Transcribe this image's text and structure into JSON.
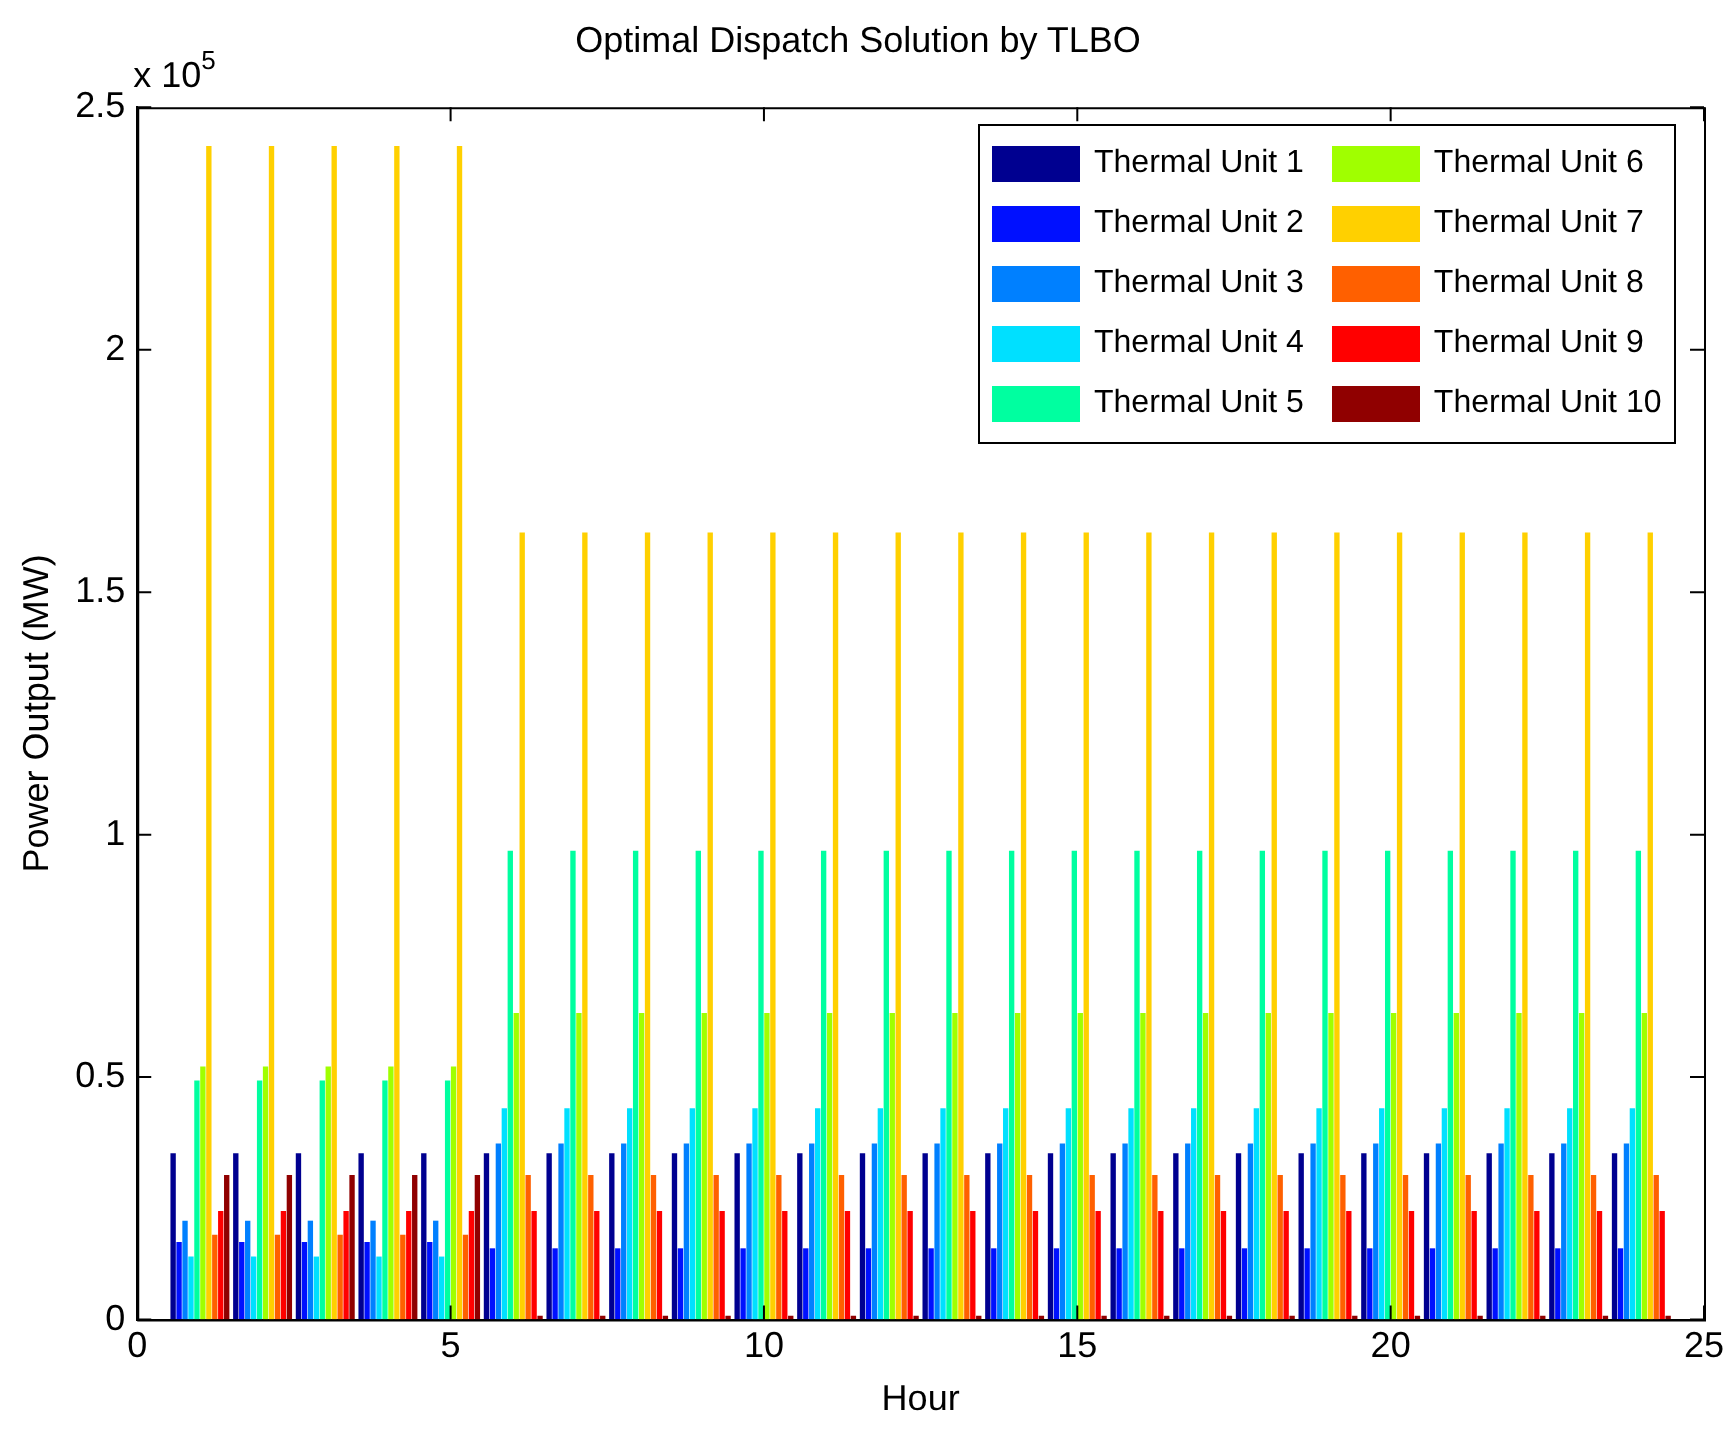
{
  "chart_data": {
    "type": "bar",
    "title": "Optimal Dispatch Solution by TLBO",
    "xlabel": "Hour",
    "ylabel": "Power Output (MW)",
    "annotations": [
      "x 10$^{5}$"
    ],
    "x": [
      1,
      2,
      3,
      4,
      5,
      6,
      7,
      8,
      9,
      10,
      11,
      12,
      13,
      14,
      15,
      16,
      17,
      18,
      19,
      20,
      21,
      22,
      23,
      24
    ],
    "xlim": [
      0,
      25
    ],
    "xticks": [
      0,
      5,
      10,
      15,
      20,
      25
    ],
    "ylim": [
      0,
      2.5
    ],
    "yticks": [
      0,
      0.5,
      1,
      1.5,
      2,
      2.5
    ],
    "legend": "top right",
    "series": [
      {
        "name": "Thermal Unit 1",
        "color": "#000090",
        "values": [
          0.343,
          0.343,
          0.343,
          0.343,
          0.343,
          0.343,
          0.343,
          0.343,
          0.343,
          0.343,
          0.343,
          0.343,
          0.343,
          0.343,
          0.343,
          0.343,
          0.343,
          0.343,
          0.343,
          0.343,
          0.343,
          0.343,
          0.343,
          0.343
        ]
      },
      {
        "name": "Thermal Unit 2",
        "color": "#0010ff",
        "values": [
          0.16,
          0.16,
          0.16,
          0.16,
          0.16,
          0.147,
          0.147,
          0.147,
          0.147,
          0.147,
          0.147,
          0.147,
          0.147,
          0.147,
          0.147,
          0.147,
          0.147,
          0.147,
          0.147,
          0.147,
          0.147,
          0.147,
          0.147,
          0.147
        ]
      },
      {
        "name": "Thermal Unit 3",
        "color": "#0080ff",
        "values": [
          0.204,
          0.204,
          0.204,
          0.204,
          0.204,
          0.363,
          0.363,
          0.363,
          0.363,
          0.363,
          0.363,
          0.363,
          0.363,
          0.363,
          0.363,
          0.363,
          0.363,
          0.363,
          0.363,
          0.363,
          0.363,
          0.363,
          0.363,
          0.363
        ]
      },
      {
        "name": "Thermal Unit 4",
        "color": "#00e0ff",
        "values": [
          0.13,
          0.13,
          0.13,
          0.13,
          0.13,
          0.436,
          0.436,
          0.436,
          0.436,
          0.436,
          0.436,
          0.436,
          0.436,
          0.436,
          0.436,
          0.436,
          0.436,
          0.436,
          0.436,
          0.436,
          0.436,
          0.436,
          0.436,
          0.436
        ]
      },
      {
        "name": "Thermal Unit 5",
        "color": "#00ffa0",
        "values": [
          0.493,
          0.493,
          0.493,
          0.493,
          0.493,
          0.967,
          0.967,
          0.967,
          0.967,
          0.967,
          0.967,
          0.967,
          0.967,
          0.967,
          0.967,
          0.967,
          0.967,
          0.967,
          0.967,
          0.967,
          0.967,
          0.967,
          0.967,
          0.967
        ]
      },
      {
        "name": "Thermal Unit 6",
        "color": "#a0ff00",
        "values": [
          0.522,
          0.522,
          0.522,
          0.522,
          0.522,
          0.632,
          0.632,
          0.632,
          0.632,
          0.632,
          0.632,
          0.632,
          0.632,
          0.632,
          0.632,
          0.632,
          0.632,
          0.632,
          0.632,
          0.632,
          0.632,
          0.632,
          0.632,
          0.632
        ]
      },
      {
        "name": "Thermal Unit 7",
        "color": "#ffd000",
        "values": [
          2.42,
          2.42,
          2.42,
          2.42,
          2.42,
          1.623,
          1.623,
          1.623,
          1.623,
          1.623,
          1.623,
          1.623,
          1.623,
          1.623,
          1.623,
          1.623,
          1.623,
          1.623,
          1.623,
          1.623,
          1.623,
          1.623,
          1.623,
          1.623
        ]
      },
      {
        "name": "Thermal Unit 8",
        "color": "#ff6000",
        "values": [
          0.175,
          0.175,
          0.175,
          0.175,
          0.175,
          0.298,
          0.298,
          0.298,
          0.298,
          0.298,
          0.298,
          0.298,
          0.298,
          0.298,
          0.298,
          0.298,
          0.298,
          0.298,
          0.298,
          0.298,
          0.298,
          0.298,
          0.298,
          0.298
        ]
      },
      {
        "name": "Thermal Unit 9",
        "color": "#ff0000",
        "values": [
          0.224,
          0.224,
          0.224,
          0.224,
          0.224,
          0.224,
          0.224,
          0.224,
          0.224,
          0.224,
          0.224,
          0.224,
          0.224,
          0.224,
          0.224,
          0.224,
          0.224,
          0.224,
          0.224,
          0.224,
          0.224,
          0.224,
          0.224,
          0.224
        ]
      },
      {
        "name": "Thermal Unit 10",
        "color": "#900000",
        "values": [
          0.298,
          0.298,
          0.298,
          0.298,
          0.298,
          0.008,
          0.008,
          0.008,
          0.008,
          0.008,
          0.008,
          0.008,
          0.008,
          0.008,
          0.008,
          0.008,
          0.008,
          0.008,
          0.008,
          0.008,
          0.008,
          0.008,
          0.008,
          0.008
        ]
      }
    ]
  }
}
